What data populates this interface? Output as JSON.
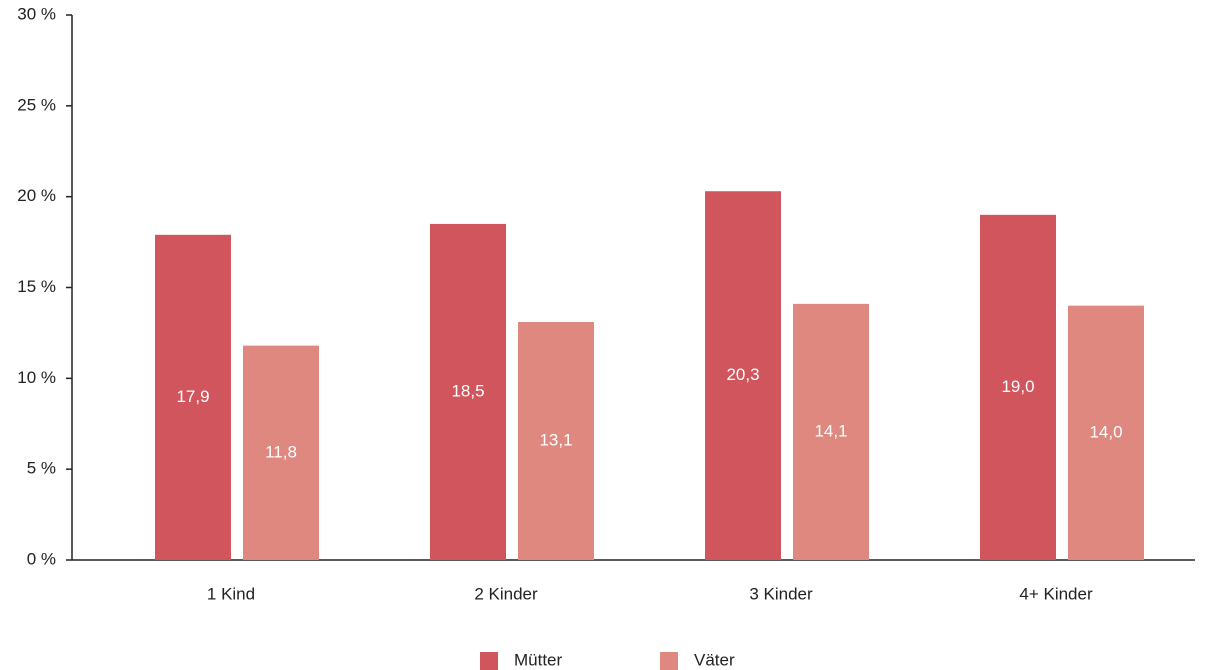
{
  "chart_data": {
    "type": "bar",
    "categories": [
      "1 Kind",
      "2 Kinder",
      "3 Kinder",
      "4+ Kinder"
    ],
    "series": [
      {
        "name": "Mütter",
        "color": "#d1555c",
        "values": [
          17.9,
          18.5,
          20.3,
          19.0
        ],
        "value_labels": [
          "17,9",
          "18,5",
          "20,3",
          "19,0"
        ]
      },
      {
        "name": "Väter",
        "color": "#de8880",
        "values": [
          11.8,
          13.1,
          14.1,
          14.0
        ],
        "value_labels": [
          "11,8",
          "13,1",
          "14,1",
          "14,0"
        ]
      }
    ],
    "ylim": [
      0,
      30
    ],
    "yticks": [
      {
        "value": 0,
        "label": "0 %"
      },
      {
        "value": 5,
        "label": "5 %"
      },
      {
        "value": 10,
        "label": "10 %"
      },
      {
        "value": 15,
        "label": "15 %"
      },
      {
        "value": 20,
        "label": "20 %"
      },
      {
        "value": 25,
        "label": "25 %"
      },
      {
        "value": 30,
        "label": "30 %"
      }
    ],
    "grid": false,
    "legend": "bottom"
  }
}
